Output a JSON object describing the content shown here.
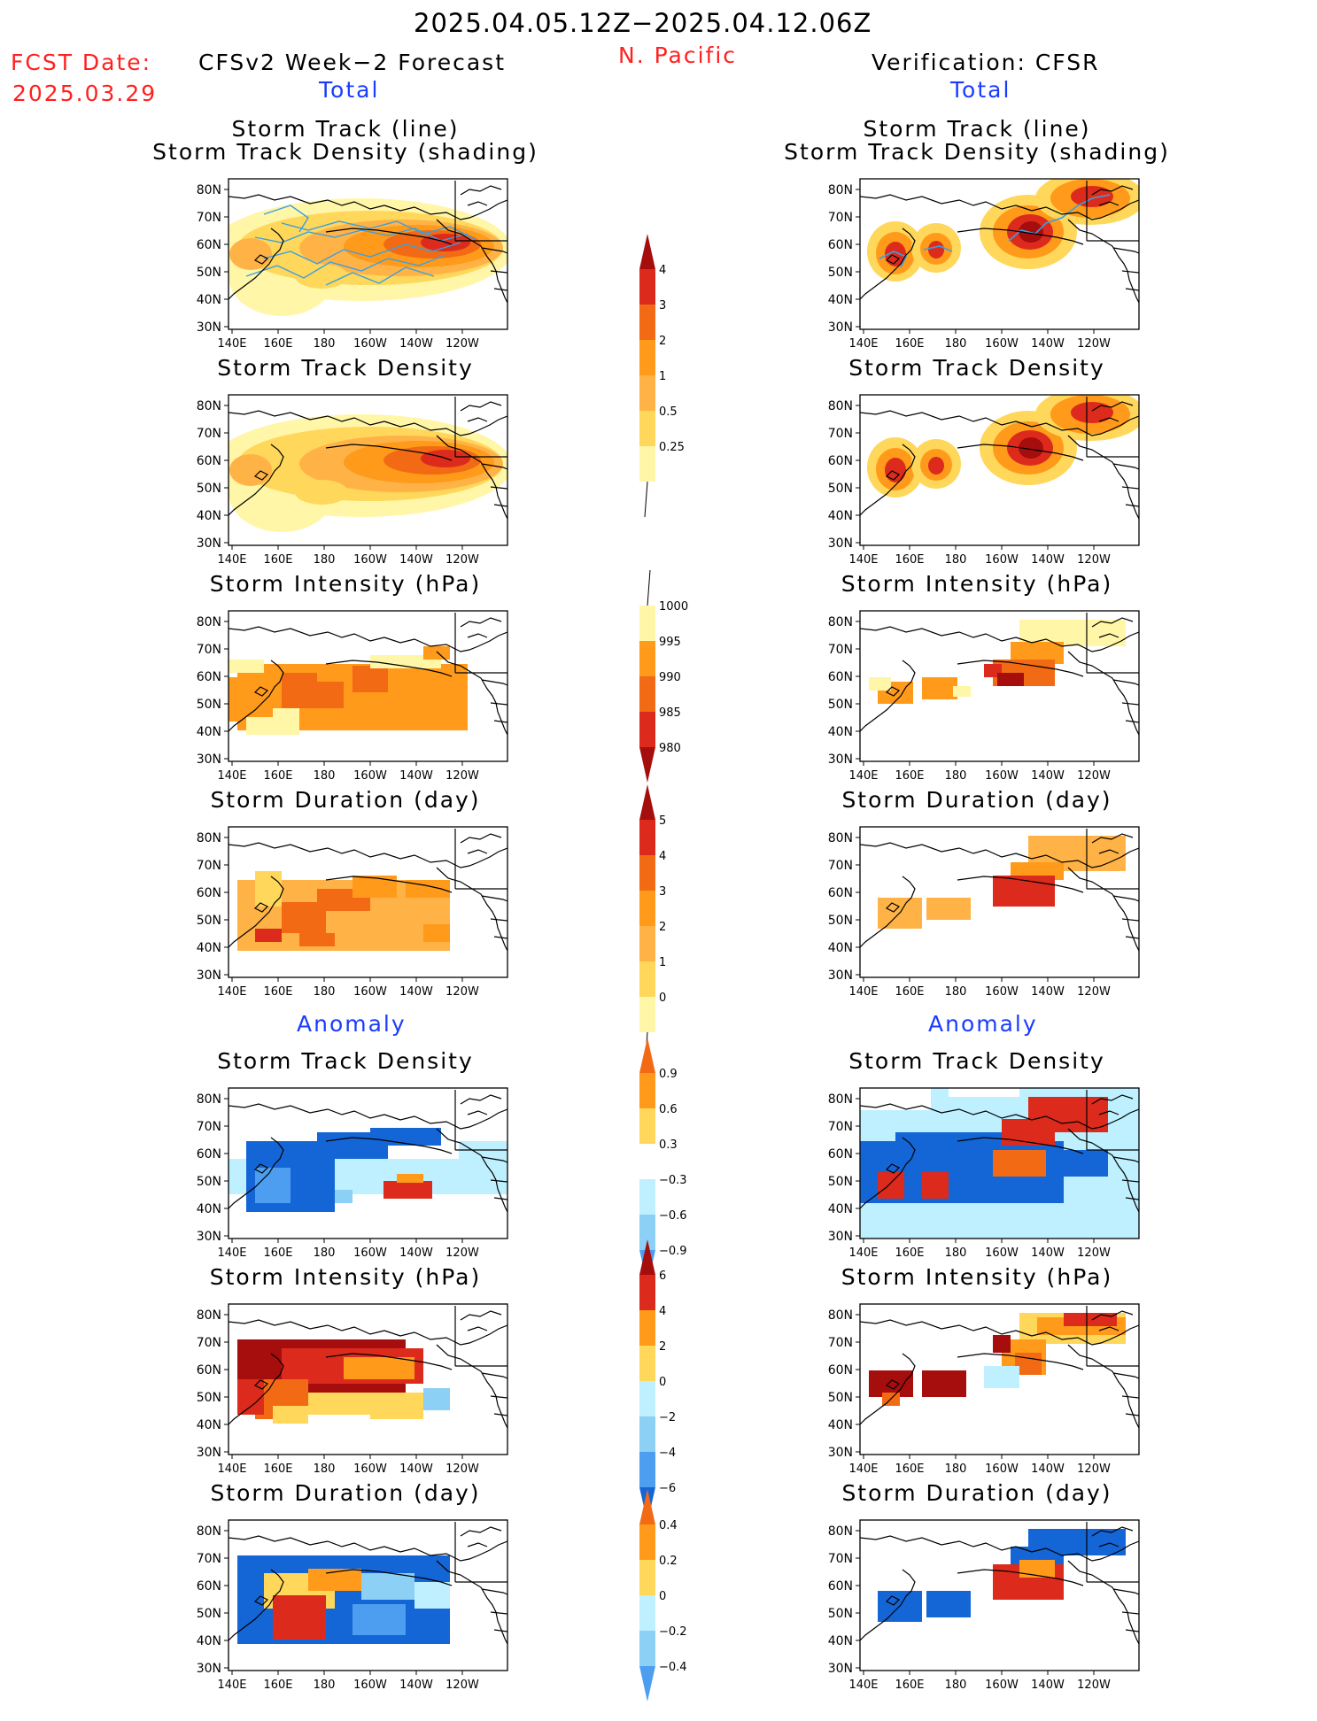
{
  "header": {
    "date_range": "2025.04.05.12Z−2025.04.12.06Z",
    "region": "N. Pacific",
    "fcst_label": "FCST Date:",
    "fcst_date": "2025.03.29",
    "left_title": "CFSv2 Week−2 Forecast",
    "right_title": "Verification: CFSR",
    "total_left": "Total",
    "total_right": "Total",
    "anomaly_left": "Anomaly",
    "anomaly_right": "Anomaly"
  },
  "panel_titles": {
    "track_line": "Storm Track (line)",
    "track_density_shading": "Storm Track Density (shading)",
    "track_density": "Storm Track Density",
    "intensity": "Storm Intensity (hPa)",
    "duration": "Storm Duration (day)"
  },
  "axes": {
    "lat_labels": [
      "80N",
      "70N",
      "60N",
      "50N",
      "40N",
      "30N"
    ],
    "lon_labels": [
      "140E",
      "160E",
      "180",
      "160W",
      "140W",
      "120W"
    ]
  },
  "colorbars": {
    "density": [
      "4",
      "3",
      "2",
      "1",
      "0.5",
      "0.25"
    ],
    "intensity": [
      "1000",
      "995",
      "990",
      "985",
      "980"
    ],
    "duration": [
      "5",
      "4",
      "3",
      "2",
      "1",
      "0"
    ],
    "density_anom": [
      "0.9",
      "0.6",
      "0.3",
      "−0.3",
      "−0.6",
      "−0.9"
    ],
    "intensity_anom": [
      "6",
      "4",
      "2",
      "0",
      "−2",
      "−4",
      "−6"
    ],
    "duration_anom": [
      "0.4",
      "0.2",
      "0",
      "−0.2",
      "−0.4"
    ]
  },
  "colors": {
    "yellow_light": "#fff6a8",
    "yellow": "#ffd75a",
    "orange_light": "#ffb347",
    "orange": "#ff9a1a",
    "orange_red": "#f26a14",
    "red": "#dc2b1c",
    "dark_red": "#a60d0d",
    "cyan_light": "#bff0ff",
    "blue_light": "#8cd0f5",
    "blue": "#4d9ef0",
    "blue_dark": "#1466d6",
    "track_line": "#3aa0e0"
  }
}
